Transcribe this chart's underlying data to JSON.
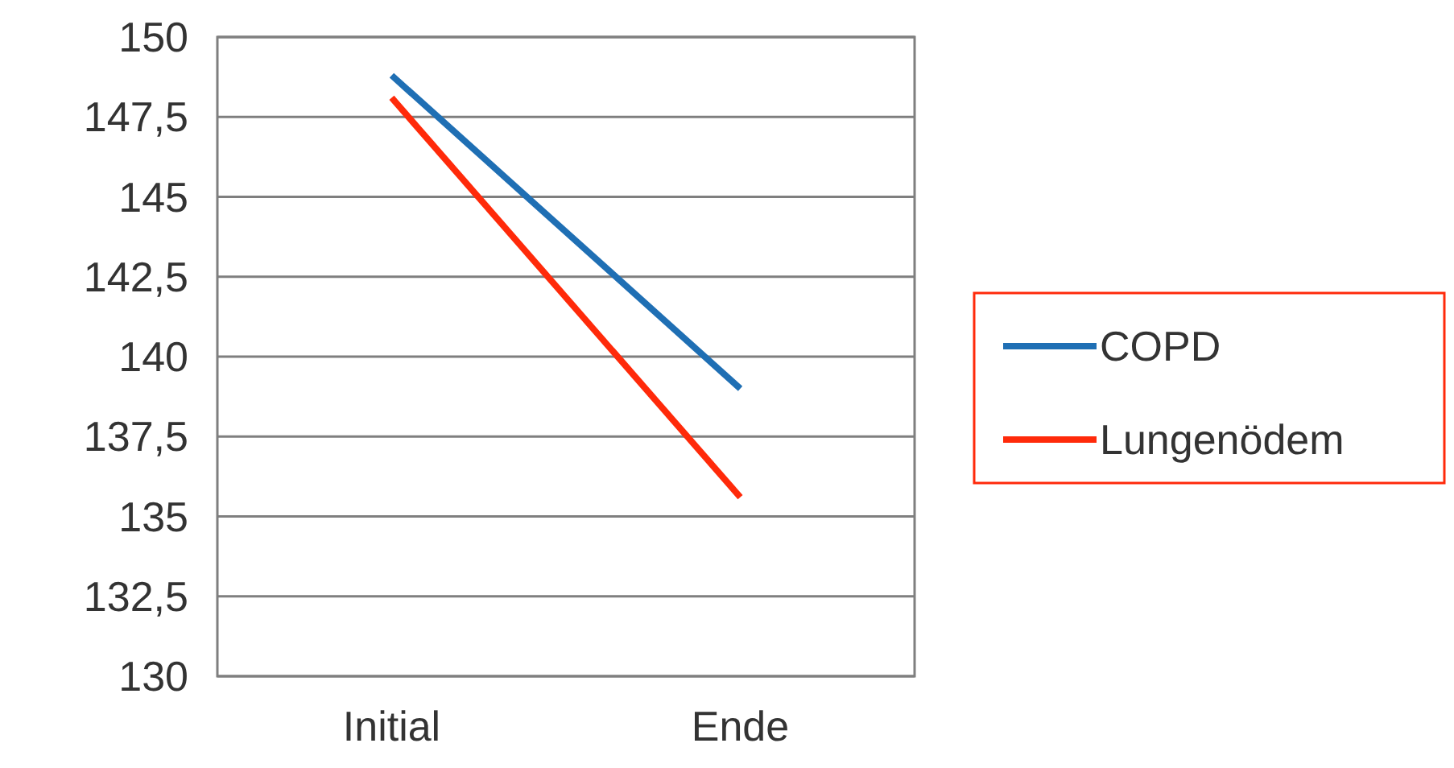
{
  "chart_data": {
    "type": "line",
    "categories": [
      "Initial",
      "Ende"
    ],
    "series": [
      {
        "name": "COPD",
        "color": "#1f6fb4",
        "values": [
          148.8,
          139
        ]
      },
      {
        "name": "Lungenödem",
        "color": "#ff2a0a",
        "values": [
          148.1,
          135.6
        ]
      }
    ],
    "ylim": [
      130,
      150
    ],
    "yticks": [
      130,
      {
        "value": 132.5,
        "label": "132,5"
      },
      135,
      {
        "value": 137.5,
        "label": "137,5"
      },
      140,
      {
        "value": 142.5,
        "label": "142,5"
      },
      145,
      {
        "value": 147.5,
        "label": "147,5"
      },
      150
    ],
    "grid": "y",
    "legend": "right",
    "marker": "none",
    "line_style": "solid"
  }
}
